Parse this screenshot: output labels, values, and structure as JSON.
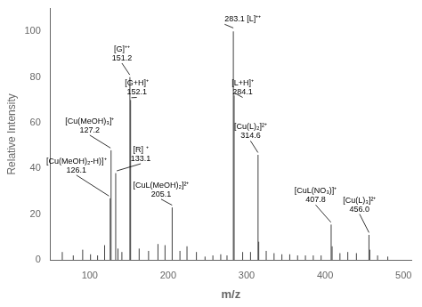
{
  "chart_data": {
    "type": "stem",
    "xlabel": "m/z",
    "ylabel": "Relative Intensity",
    "x": [
      65.0,
      79.0,
      91.0,
      101.0,
      110.0,
      119.0,
      126.1,
      127.2,
      133.1,
      136.0,
      141.0,
      151.2,
      152.1,
      163.0,
      175.0,
      187.0,
      196.0,
      205.1,
      215.0,
      224.0,
      236.0,
      247.0,
      257.0,
      267.0,
      275.0,
      283.1,
      284.1,
      295.0,
      305.0,
      314.6,
      315.5,
      325.0,
      335.0,
      345.0,
      355.0,
      365.0,
      375.0,
      385.0,
      395.0,
      407.8,
      409.0,
      419.0,
      429.0,
      440.0,
      456.0,
      457.0,
      467.0,
      480.0
    ],
    "values": [
      3.5,
      2.0,
      4.5,
      2.5,
      2.0,
      6.5,
      27.0,
      48.0,
      38.0,
      5.0,
      3.5,
      80.0,
      70.0,
      5.0,
      4.0,
      7.0,
      6.5,
      23.0,
      4.0,
      6.0,
      3.5,
      1.5,
      2.0,
      2.5,
      2.0,
      100.0,
      72.0,
      3.5,
      3.5,
      46.0,
      8.0,
      4.0,
      3.0,
      2.5,
      2.5,
      2.0,
      2.0,
      2.0,
      2.0,
      15.5,
      6.0,
      3.0,
      3.5,
      3.0,
      11.0,
      4.5,
      2.0,
      1.5
    ],
    "color": "#404040",
    "xlim": [
      50,
      510
    ],
    "ylim": [
      0,
      110
    ],
    "xticks": [
      100,
      200,
      300,
      400,
      500
    ],
    "yticks": [
      0,
      20,
      40,
      60,
      80,
      100
    ],
    "grid": false,
    "annotations": [
      {
        "lines": [
          "[Cu(MeOH)₂-H)]⁺",
          "126.1"
        ],
        "x": 83.0,
        "y": 37.5,
        "point": [
          124.5,
          28.0
        ]
      },
      {
        "lines": [
          "[Cu(MeOH)₃]⁺",
          "127.2"
        ],
        "x": 100.0,
        "y": 55.0,
        "point": [
          126.5,
          49.0
        ]
      },
      {
        "lines": [
          "[G]⁺⁺",
          "151.2"
        ],
        "x": 141.0,
        "y": 86.5,
        "point": [
          151.0,
          81.0
        ]
      },
      {
        "lines": [
          "[G+H]⁺",
          "152.1"
        ],
        "x": 160.0,
        "y": 71.5,
        "point": [
          153.0,
          71.0
        ]
      },
      {
        "lines": [
          "[R] ⁺",
          "133.1"
        ],
        "x": 165.0,
        "y": 42.5,
        "point": [
          134.5,
          39.0
        ]
      },
      {
        "lines": [
          "[CuL(MeOH)₂]²⁺",
          "205.1"
        ],
        "x": 191.0,
        "y": 27.0,
        "point": [
          205.0,
          24.0
        ]
      },
      {
        "lines": [
          "283.1 [L]⁺⁺"
        ],
        "x": 272.0,
        "y": 103.5,
        "point": [
          283.1,
          101.5
        ]
      },
      {
        "lines": [
          "[L+H]⁺",
          "284.1"
        ],
        "x": 295.0,
        "y": 71.5,
        "point": [
          285.0,
          73.0
        ]
      },
      {
        "lines": [
          "[Cu(L)₂]²⁺",
          "314.6"
        ],
        "x": 305.0,
        "y": 52.5,
        "point": [
          314.5,
          47.0
        ]
      },
      {
        "lines": [
          "[CuL(NO₃)]⁺",
          "407.8"
        ],
        "x": 388.0,
        "y": 24.5,
        "point": [
          407.5,
          16.5
        ]
      },
      {
        "lines": [
          "[Cu(L)₃]²⁺",
          "456.0"
        ],
        "x": 444.0,
        "y": 20.5,
        "point": [
          456.0,
          12.0
        ]
      }
    ]
  }
}
